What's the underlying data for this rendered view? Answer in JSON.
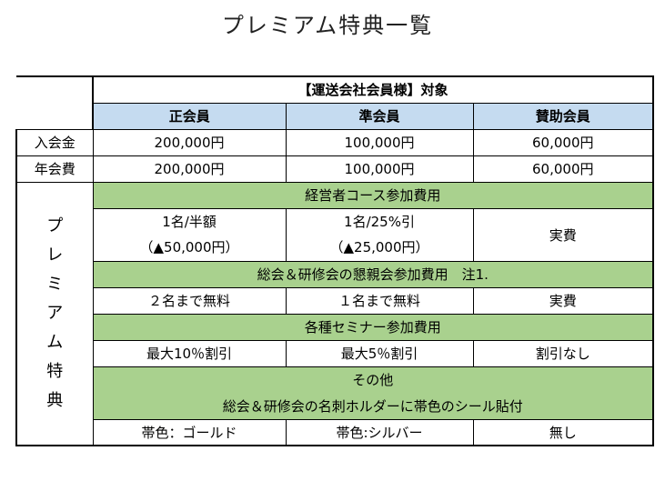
{
  "page": {
    "title": "プレミアム特典一覧"
  },
  "table": {
    "header_title": "【運送会社会員様】対象",
    "columns": [
      "正会員",
      "準会員",
      "賛助会員"
    ],
    "fees": [
      {
        "label": "入会金",
        "values": [
          "200,000円",
          "100,000円",
          "60,000円"
        ]
      },
      {
        "label": "年会費",
        "values": [
          "200,000円",
          "100,000円",
          "60,000円"
        ]
      }
    ],
    "premium_label_chars": [
      "プ",
      "レ",
      "ミ",
      "ア",
      "ム",
      "特",
      "典"
    ],
    "sections": [
      {
        "title": "経営者コース参加費用",
        "cells": [
          {
            "line1": "1名/半額",
            "line2": "（▲50,000円）"
          },
          {
            "line1": "1名/25%引",
            "line2": "（▲25,000円）"
          },
          {
            "line1": "実費"
          }
        ]
      },
      {
        "title": "総会＆研修会の懇親会参加費用　注1.",
        "cells": [
          {
            "line1": "２名まで無料"
          },
          {
            "line1": "１名まで無料"
          },
          {
            "line1": "実費"
          }
        ]
      },
      {
        "title": "各種セミナー参加費用",
        "cells": [
          {
            "line1": "最大10％割引"
          },
          {
            "line1": "最大5％割引"
          },
          {
            "line1": "割引なし"
          }
        ]
      },
      {
        "title_line1": "その他",
        "title_line2": "総会＆研修会の名刺ホルダーに帯色のシール貼付",
        "cells": [
          {
            "line1": "帯色：ゴールド"
          },
          {
            "line1": "帯色:シルバー"
          },
          {
            "line1": "無し"
          }
        ]
      }
    ]
  },
  "colors": {
    "header_blue": "#c5dbf0",
    "section_green": "#a9d18e"
  }
}
